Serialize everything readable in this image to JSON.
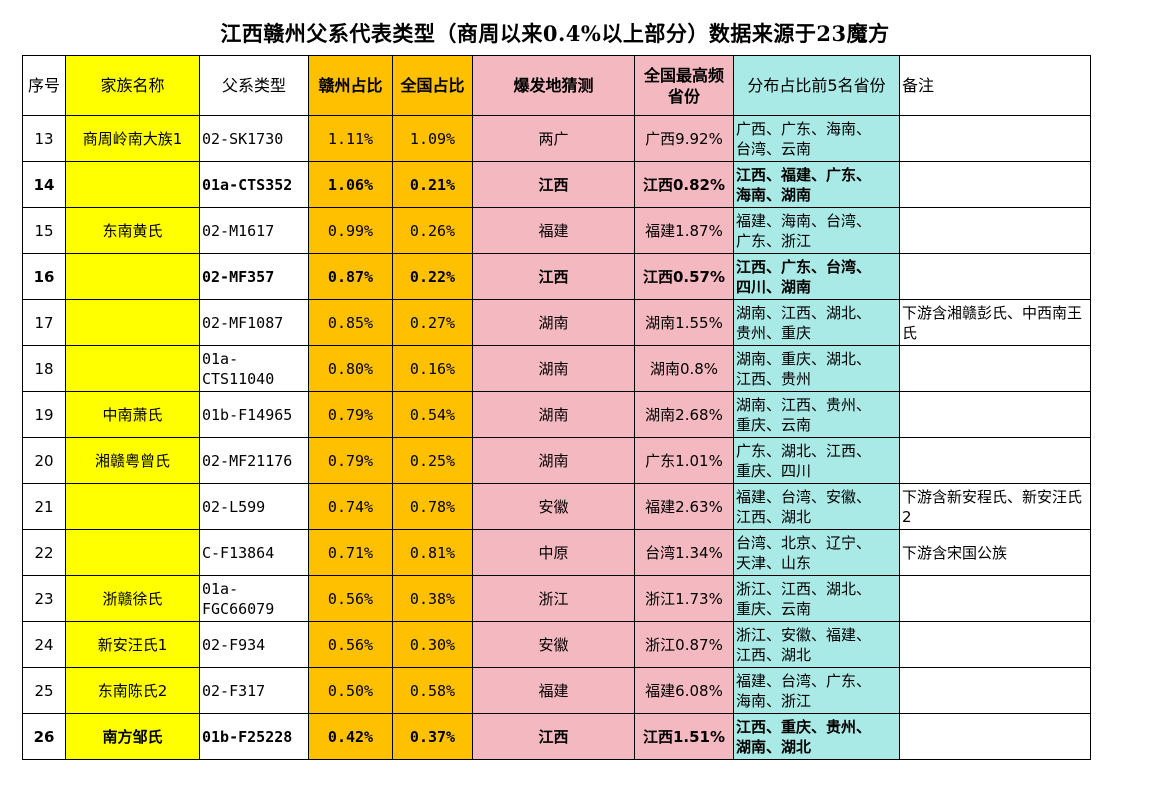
{
  "title": "江西赣州父系代表类型（商周以来0.4%以上部分）数据来源于23魔方",
  "headers": {
    "idx": "序号",
    "family": "家族名称",
    "type": "父系类型",
    "ganzhou": "赣州占比",
    "national": "全国占比",
    "origin": "爆发地猜测",
    "top": "全国最高频\n省份",
    "top5": "分布占比前5名省份",
    "note": "备注"
  },
  "rows": [
    {
      "idx": "13",
      "family": "商周岭南大族1",
      "type": "02-SK1730",
      "ganzhou": "1.11%",
      "national": "1.09%",
      "origin": "两广",
      "top": "广西9.92%",
      "top5": "广西、广东、海南、\n台湾、云南",
      "note": "",
      "bold": false
    },
    {
      "idx": "14",
      "family": "",
      "type": "01a-CTS352",
      "ganzhou": "1.06%",
      "national": "0.21%",
      "origin": "江西",
      "top": "江西0.82%",
      "top5": "江西、福建、广东、\n海南、湖南",
      "note": "",
      "bold": true
    },
    {
      "idx": "15",
      "family": "东南黄氏",
      "type": "02-M1617",
      "ganzhou": "0.99%",
      "national": "0.26%",
      "origin": "福建",
      "top": "福建1.87%",
      "top5": "福建、海南、台湾、\n广东、浙江",
      "note": "",
      "bold": false
    },
    {
      "idx": "16",
      "family": "",
      "type": "02-MF357",
      "ganzhou": "0.87%",
      "national": "0.22%",
      "origin": "江西",
      "top": "江西0.57%",
      "top5": "江西、广东、台湾、\n四川、湖南",
      "note": "",
      "bold": true
    },
    {
      "idx": "17",
      "family": "",
      "type": "02-MF1087",
      "ganzhou": "0.85%",
      "national": "0.27%",
      "origin": "湖南",
      "top": "湖南1.55%",
      "top5": "湖南、江西、湖北、\n贵州、重庆",
      "note": "下游含湘赣彭氏、中西南王氏",
      "bold": false
    },
    {
      "idx": "18",
      "family": "",
      "type": "01a-CTS11040",
      "ganzhou": "0.80%",
      "national": "0.16%",
      "origin": "湖南",
      "top": "湖南0.8%",
      "top5": "湖南、重庆、湖北、\n江西、贵州",
      "note": "",
      "bold": false
    },
    {
      "idx": "19",
      "family": "中南萧氏",
      "type": "01b-F14965",
      "ganzhou": "0.79%",
      "national": "0.54%",
      "origin": "湖南",
      "top": "湖南2.68%",
      "top5": "湖南、江西、贵州、\n重庆、云南",
      "note": "",
      "bold": false
    },
    {
      "idx": "20",
      "family": "湘赣粤曾氏",
      "type": "02-MF21176",
      "ganzhou": "0.79%",
      "national": "0.25%",
      "origin": "湖南",
      "top": "广东1.01%",
      "top5": "广东、湖北、江西、\n重庆、四川",
      "note": "",
      "bold": false
    },
    {
      "idx": "21",
      "family": "",
      "type": "02-L599",
      "ganzhou": "0.74%",
      "national": "0.78%",
      "origin": "安徽",
      "top": "福建2.63%",
      "top5": "福建、台湾、安徽、\n江西、湖北",
      "note": "下游含新安程氏、新安汪氏2",
      "bold": false
    },
    {
      "idx": "22",
      "family": "",
      "type": "C-F13864",
      "ganzhou": "0.71%",
      "national": "0.81%",
      "origin": "中原",
      "top": "台湾1.34%",
      "top5": "台湾、北京、辽宁、\n天津、山东",
      "note": "下游含宋国公族",
      "bold": false
    },
    {
      "idx": "23",
      "family": "浙赣徐氏",
      "type": "01a-FGC66079",
      "ganzhou": "0.56%",
      "national": "0.38%",
      "origin": "浙江",
      "top": "浙江1.73%",
      "top5": "浙江、江西、湖北、\n重庆、云南",
      "note": "",
      "bold": false
    },
    {
      "idx": "24",
      "family": "新安汪氏1",
      "type": "02-F934",
      "ganzhou": "0.56%",
      "national": "0.30%",
      "origin": "安徽",
      "top": "浙江0.87%",
      "top5": "浙江、安徽、福建、\n江西、湖北",
      "note": "",
      "bold": false
    },
    {
      "idx": "25",
      "family": "东南陈氏2",
      "type": "02-F317",
      "ganzhou": "0.50%",
      "national": "0.58%",
      "origin": "福建",
      "top": "福建6.08%",
      "top5": "福建、台湾、广东、\n海南、浙江",
      "note": "",
      "bold": false
    },
    {
      "idx": "26",
      "family": "南方邹氏",
      "type": "01b-F25228",
      "ganzhou": "0.42%",
      "national": "0.37%",
      "origin": "江西",
      "top": "江西1.51%",
      "top5": "江西、重庆、贵州、\n湖南、湖北",
      "note": "",
      "bold": true
    }
  ],
  "colors": {
    "yellow": "#ffff00",
    "orange": "#ffc000",
    "pink": "#f4b8c0",
    "teal": "#a9e9e6"
  }
}
